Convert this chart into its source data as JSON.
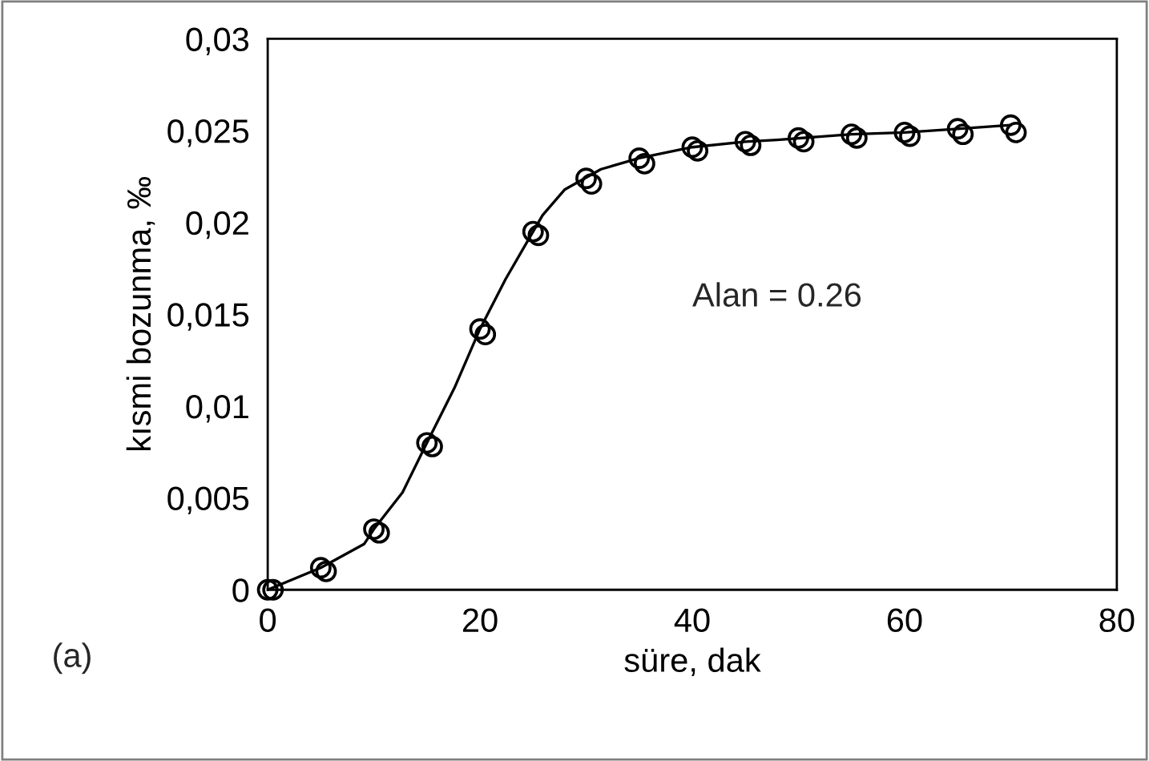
{
  "chart_data": {
    "type": "scatter",
    "xlabel": "süre, dak",
    "ylabel": "kısmi bozunma, ‰",
    "annotations": [
      "Alan = 0.26",
      "(a)"
    ],
    "xlim": [
      0,
      80
    ],
    "xticks": [
      0,
      20,
      40,
      60,
      80
    ],
    "ylim": [
      0,
      0.03
    ],
    "yticks": [
      {
        "value": 0,
        "label": "0"
      },
      {
        "value": 0.005,
        "label": "0,005"
      },
      {
        "value": 0.01,
        "label": "0,01"
      },
      {
        "value": 0.015,
        "label": "0,015"
      },
      {
        "value": 0.02,
        "label": "0,02"
      },
      {
        "value": 0.025,
        "label": "0,025"
      },
      {
        "value": 0.03,
        "label": "0,03"
      }
    ],
    "grid": false,
    "legend": false,
    "marker": "circle",
    "series": [
      {
        "type": "line",
        "color": "#000000",
        "marker": "none",
        "x": [
          0,
          5,
          9.1,
          10,
          12.7,
          15,
          17.6,
          20,
          22.4,
          25,
          25.9,
          28,
          31.4,
          35,
          40,
          45,
          48,
          55,
          60,
          65,
          70
        ],
        "values": [
          0,
          0.0012,
          0.0025,
          0.0033,
          0.0053,
          0.008,
          0.011,
          0.0142,
          0.0169,
          0.0195,
          0.0204,
          0.0218,
          0.0229,
          0.0235,
          0.0241,
          0.0244,
          0.0245,
          0.0248,
          0.0249,
          0.0251,
          0.0253
        ]
      },
      {
        "color": "#000000",
        "x": [
          0,
          5,
          10,
          15,
          20,
          25,
          30,
          35,
          40,
          45,
          50,
          55,
          60,
          65,
          70
        ],
        "values": [
          0,
          0.0012,
          0.0033,
          0.008,
          0.0142,
          0.0195,
          0.0224,
          0.0235,
          0.0241,
          0.0244,
          0.0246,
          0.0248,
          0.0249,
          0.0251,
          0.0253
        ]
      },
      {
        "color": "#000000",
        "x": [
          0.5,
          5.5,
          10.5,
          15.5,
          20.5,
          25.5,
          30.5,
          35.5,
          40.5,
          45.5,
          50.5,
          55.5,
          60.5,
          65.5,
          70.5
        ],
        "values": [
          0,
          0.001,
          0.0031,
          0.0078,
          0.0139,
          0.0193,
          0.0221,
          0.0232,
          0.0239,
          0.0242,
          0.0244,
          0.0246,
          0.0247,
          0.0248,
          0.0249
        ]
      }
    ]
  }
}
